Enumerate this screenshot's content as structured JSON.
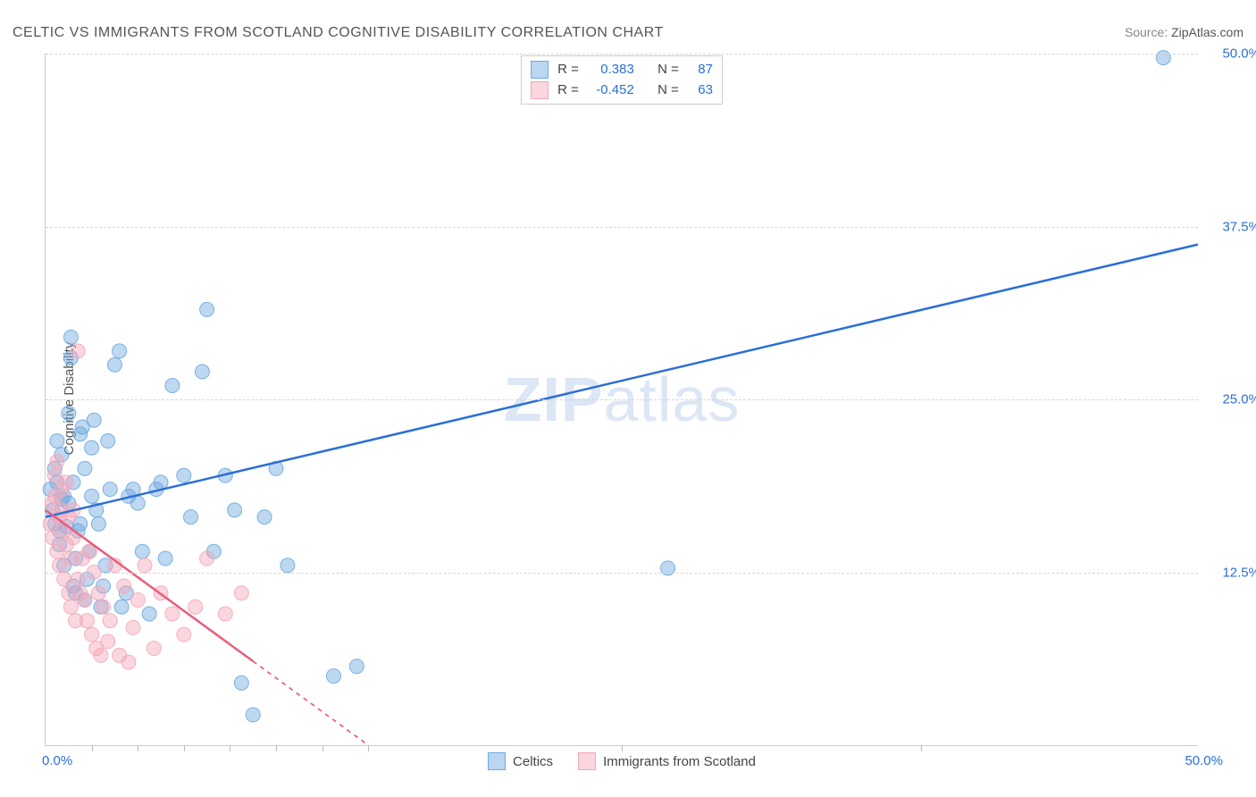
{
  "title": "CELTIC VS IMMIGRANTS FROM SCOTLAND COGNITIVE DISABILITY CORRELATION CHART",
  "source_label": "Source:",
  "source_value": "ZipAtlas.com",
  "watermark_a": "ZIP",
  "watermark_b": "atlas",
  "y_axis_label": "Cognitive Disability",
  "chart": {
    "type": "scatter",
    "xlim": [
      0,
      50
    ],
    "ylim": [
      0,
      50
    ],
    "x_tick_origin": "0.0%",
    "x_tick_max": "50.0%",
    "y_ticks": [
      {
        "v": 12.5,
        "label": "12.5%"
      },
      {
        "v": 25.0,
        "label": "25.0%"
      },
      {
        "v": 37.5,
        "label": "37.5%"
      },
      {
        "v": 50.0,
        "label": "50.0%"
      }
    ],
    "x_minor_ticks": [
      2,
      4,
      6,
      8,
      10,
      12,
      14,
      25,
      38
    ],
    "background_color": "#ffffff",
    "grid_color": "#d5d5d5",
    "marker_radius": 8,
    "marker_opacity": 0.45,
    "marker_stroke_opacity": 0.9,
    "line_width": 2.5,
    "series": [
      {
        "key": "celtics",
        "label": "Celtics",
        "color": "#6ea8e0",
        "line_color": "#2a6fd6",
        "R": "0.383",
        "N": "87",
        "trend": {
          "x1": 0,
          "y1": 16.5,
          "x2": 50,
          "y2": 36.2,
          "dash_from_x": 50
        },
        "points": [
          [
            0.2,
            18.5
          ],
          [
            0.3,
            17.0
          ],
          [
            0.4,
            16.0
          ],
          [
            0.4,
            20.0
          ],
          [
            0.5,
            22.0
          ],
          [
            0.5,
            19.0
          ],
          [
            0.6,
            14.5
          ],
          [
            0.6,
            15.5
          ],
          [
            0.7,
            17.8
          ],
          [
            0.7,
            21.0
          ],
          [
            0.8,
            18.0
          ],
          [
            0.8,
            13.0
          ],
          [
            0.9,
            15.8
          ],
          [
            1.0,
            17.5
          ],
          [
            1.0,
            24.0
          ],
          [
            1.1,
            28.0
          ],
          [
            1.1,
            29.5
          ],
          [
            1.2,
            19.0
          ],
          [
            1.2,
            11.5
          ],
          [
            1.3,
            11.0
          ],
          [
            1.3,
            13.5
          ],
          [
            1.4,
            15.5
          ],
          [
            1.5,
            16.0
          ],
          [
            1.5,
            22.5
          ],
          [
            1.6,
            23.0
          ],
          [
            1.7,
            20.0
          ],
          [
            1.7,
            10.5
          ],
          [
            1.8,
            12.0
          ],
          [
            1.9,
            14.0
          ],
          [
            2.0,
            18.0
          ],
          [
            2.0,
            21.5
          ],
          [
            2.1,
            23.5
          ],
          [
            2.2,
            17.0
          ],
          [
            2.3,
            16.0
          ],
          [
            2.4,
            10.0
          ],
          [
            2.5,
            11.5
          ],
          [
            2.6,
            13.0
          ],
          [
            2.7,
            22.0
          ],
          [
            2.8,
            18.5
          ],
          [
            3.0,
            27.5
          ],
          [
            3.2,
            28.5
          ],
          [
            3.3,
            10.0
          ],
          [
            3.5,
            11.0
          ],
          [
            3.6,
            18.0
          ],
          [
            3.8,
            18.5
          ],
          [
            4.0,
            17.5
          ],
          [
            4.2,
            14.0
          ],
          [
            4.5,
            9.5
          ],
          [
            4.8,
            18.5
          ],
          [
            5.0,
            19.0
          ],
          [
            5.2,
            13.5
          ],
          [
            5.5,
            26.0
          ],
          [
            6.0,
            19.5
          ],
          [
            6.3,
            16.5
          ],
          [
            6.8,
            27.0
          ],
          [
            7.0,
            31.5
          ],
          [
            7.3,
            14.0
          ],
          [
            7.8,
            19.5
          ],
          [
            8.2,
            17.0
          ],
          [
            8.5,
            4.5
          ],
          [
            9.0,
            2.2
          ],
          [
            9.5,
            16.5
          ],
          [
            10.0,
            20.0
          ],
          [
            10.5,
            13.0
          ],
          [
            12.5,
            5.0
          ],
          [
            13.5,
            5.7
          ],
          [
            27.0,
            12.8
          ],
          [
            48.5,
            49.7
          ]
        ]
      },
      {
        "key": "scotland",
        "label": "Immigrants from Scotland",
        "color": "#f4a7b9",
        "line_color": "#e85d7a",
        "R": "-0.452",
        "N": "63",
        "trend": {
          "x1": 0,
          "y1": 17.0,
          "x2": 14,
          "y2": 0,
          "dash_from_x": 9
        },
        "points": [
          [
            0.2,
            16.0
          ],
          [
            0.3,
            17.5
          ],
          [
            0.3,
            15.0
          ],
          [
            0.4,
            18.0
          ],
          [
            0.4,
            19.5
          ],
          [
            0.5,
            14.0
          ],
          [
            0.5,
            20.5
          ],
          [
            0.6,
            16.5
          ],
          [
            0.6,
            13.0
          ],
          [
            0.7,
            17.0
          ],
          [
            0.7,
            18.5
          ],
          [
            0.8,
            15.5
          ],
          [
            0.8,
            12.0
          ],
          [
            0.9,
            14.5
          ],
          [
            0.9,
            19.0
          ],
          [
            1.0,
            16.5
          ],
          [
            1.0,
            11.0
          ],
          [
            1.1,
            13.5
          ],
          [
            1.1,
            10.0
          ],
          [
            1.2,
            15.0
          ],
          [
            1.2,
            17.0
          ],
          [
            1.3,
            9.0
          ],
          [
            1.4,
            12.0
          ],
          [
            1.4,
            28.5
          ],
          [
            1.5,
            11.0
          ],
          [
            1.6,
            13.5
          ],
          [
            1.7,
            10.5
          ],
          [
            1.8,
            9.0
          ],
          [
            1.9,
            14.0
          ],
          [
            2.0,
            8.0
          ],
          [
            2.1,
            12.5
          ],
          [
            2.2,
            7.0
          ],
          [
            2.3,
            11.0
          ],
          [
            2.4,
            6.5
          ],
          [
            2.5,
            10.0
          ],
          [
            2.7,
            7.5
          ],
          [
            2.8,
            9.0
          ],
          [
            3.0,
            13.0
          ],
          [
            3.2,
            6.5
          ],
          [
            3.4,
            11.5
          ],
          [
            3.6,
            6.0
          ],
          [
            3.8,
            8.5
          ],
          [
            4.0,
            10.5
          ],
          [
            4.3,
            13.0
          ],
          [
            4.7,
            7.0
          ],
          [
            5.0,
            11.0
          ],
          [
            5.5,
            9.5
          ],
          [
            6.0,
            8.0
          ],
          [
            6.5,
            10.0
          ],
          [
            7.0,
            13.5
          ],
          [
            7.8,
            9.5
          ],
          [
            8.5,
            11.0
          ]
        ]
      }
    ]
  },
  "stats_labels": {
    "R": "R =",
    "N": "N ="
  }
}
